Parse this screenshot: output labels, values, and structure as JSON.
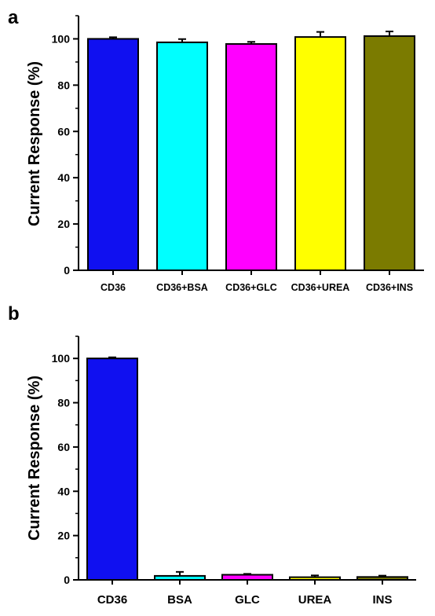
{
  "chart_data": [
    {
      "panel": "a",
      "type": "bar",
      "ylabel": "Current Response (%)",
      "xlabel": "",
      "ylim": [
        0,
        110
      ],
      "yticks": [
        0,
        20,
        40,
        60,
        80,
        100
      ],
      "categories": [
        "CD36",
        "CD36+BSA",
        "CD36+GLC",
        "CD36+UREA",
        "CD36+INS"
      ],
      "values": [
        100,
        98.5,
        97.8,
        100.8,
        101.2
      ],
      "errors": [
        0.7,
        1.4,
        0.9,
        2.2,
        2.0
      ],
      "colors": [
        "#1010f0",
        "#00ffff",
        "#ff00ff",
        "#ffff00",
        "#7b7b00"
      ],
      "grid": false
    },
    {
      "panel": "b",
      "type": "bar",
      "ylabel": "Current Response (%)",
      "xlabel": "",
      "ylim": [
        0,
        110
      ],
      "yticks": [
        0,
        20,
        40,
        60,
        80,
        100
      ],
      "categories": [
        "CD36",
        "BSA",
        "GLC",
        "UREA",
        "INS"
      ],
      "values": [
        100,
        1.8,
        2.3,
        1.2,
        1.3
      ],
      "errors": [
        0.5,
        1.8,
        0.4,
        0.8,
        0.6
      ],
      "colors": [
        "#1010f0",
        "#00ffff",
        "#ff00ff",
        "#ffff00",
        "#7b7b00"
      ],
      "grid": false
    }
  ]
}
